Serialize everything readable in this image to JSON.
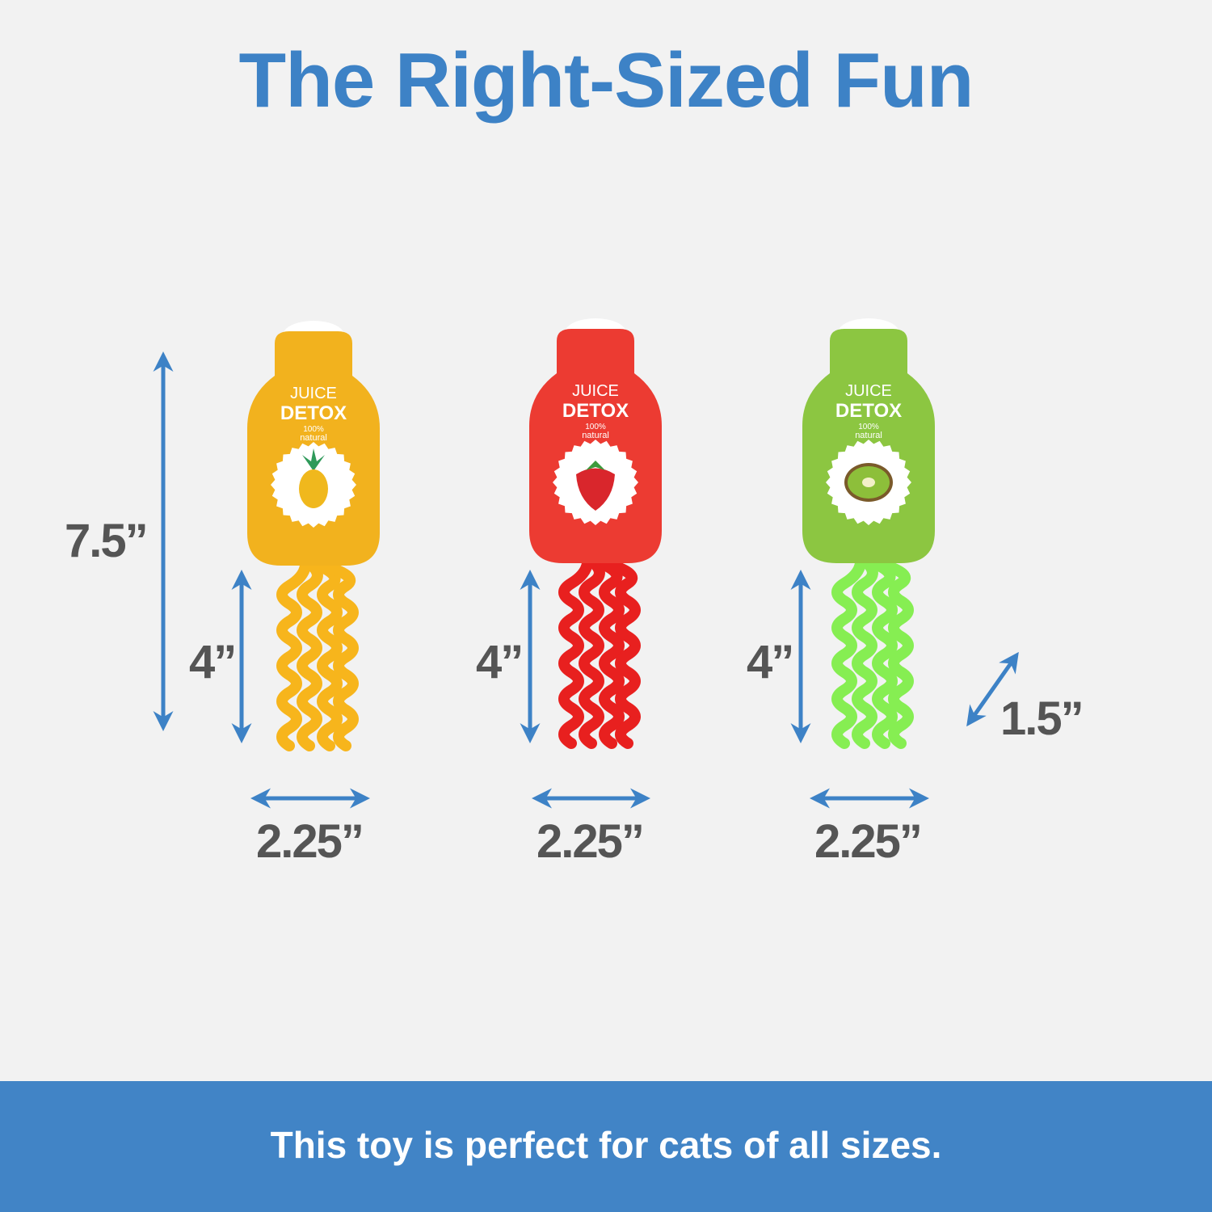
{
  "title": "The Right-Sized Fun",
  "footer": "This toy is perfect for cats of all sizes.",
  "accent_color": "#3d82c6",
  "dimensions": {
    "total_height": "7.5”",
    "ribbon_length": "4”",
    "width": "2.25”",
    "ribbon_width": "1.5”"
  },
  "products": [
    {
      "name": "pineapple",
      "color": "#f2b21e",
      "ribbon_color": "#f7b51c",
      "label": {
        "brand": "JUICE",
        "name": "DETOX",
        "percent": "100%",
        "tagline": "natural"
      }
    },
    {
      "name": "strawberry",
      "color": "#ec3b32",
      "ribbon_color": "#e8201f",
      "label": {
        "brand": "JUICE",
        "name": "DETOX",
        "percent": "100%",
        "tagline": "natural"
      }
    },
    {
      "name": "kiwi",
      "color": "#8cc641",
      "ribbon_color": "#86ee52",
      "label": {
        "brand": "JUICE",
        "name": "DETOX",
        "percent": "100%",
        "tagline": "natural"
      }
    }
  ]
}
